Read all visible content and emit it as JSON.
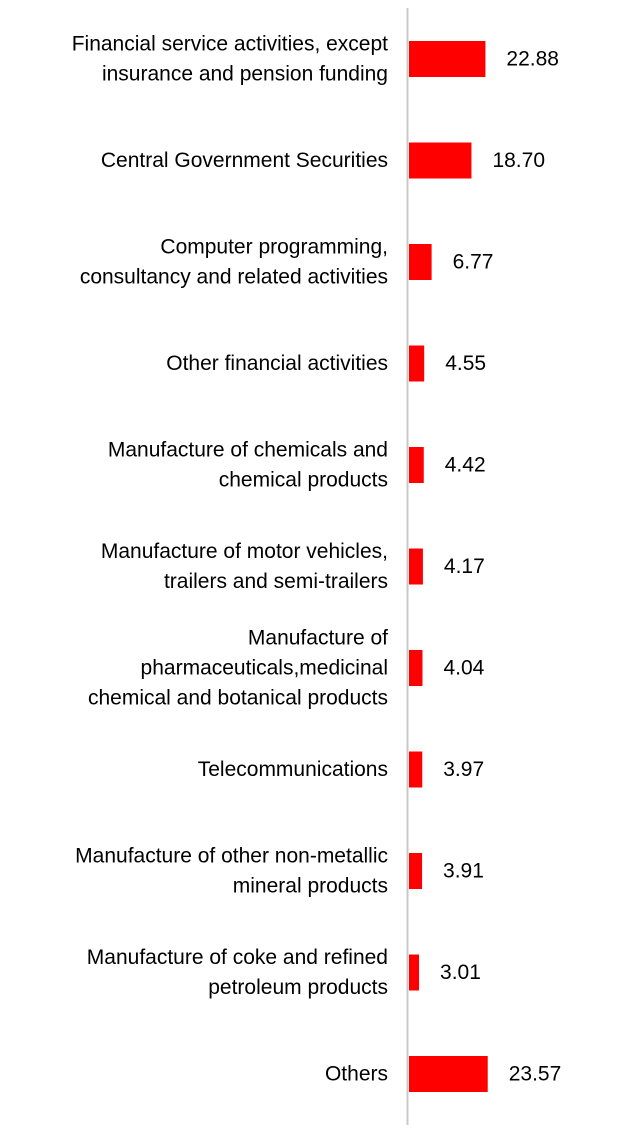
{
  "chart_data": {
    "type": "bar",
    "orientation": "horizontal",
    "title": "",
    "xlabel": "",
    "ylabel": "",
    "xlim": [
      0,
      25
    ],
    "grid": false,
    "bar_color": "#ff0000",
    "axis_color": "#c8c8c8",
    "categories": [
      [
        "Financial service activities, except",
        "insurance and pension funding"
      ],
      [
        "Central Government Securities"
      ],
      [
        "Computer programming,",
        "consultancy and related activities"
      ],
      [
        "Other financial activities"
      ],
      [
        "Manufacture of chemicals and",
        "chemical products"
      ],
      [
        "Manufacture of motor vehicles,",
        "trailers and semi-trailers"
      ],
      [
        "Manufacture of",
        "pharmaceuticals,medicinal",
        "chemical and botanical products"
      ],
      [
        "Telecommunications"
      ],
      [
        "Manufacture of other non-metallic",
        "mineral products"
      ],
      [
        "Manufacture of coke and refined",
        "petroleum products"
      ],
      [
        "Others"
      ]
    ],
    "values": [
      22.88,
      18.7,
      6.77,
      4.55,
      4.42,
      4.17,
      4.04,
      3.97,
      3.91,
      3.01,
      23.57
    ],
    "value_labels": [
      "22.88",
      "18.70",
      "6.77",
      "4.55",
      "4.42",
      "4.17",
      "4.04",
      "3.97",
      "3.91",
      "3.01",
      "23.57"
    ]
  }
}
